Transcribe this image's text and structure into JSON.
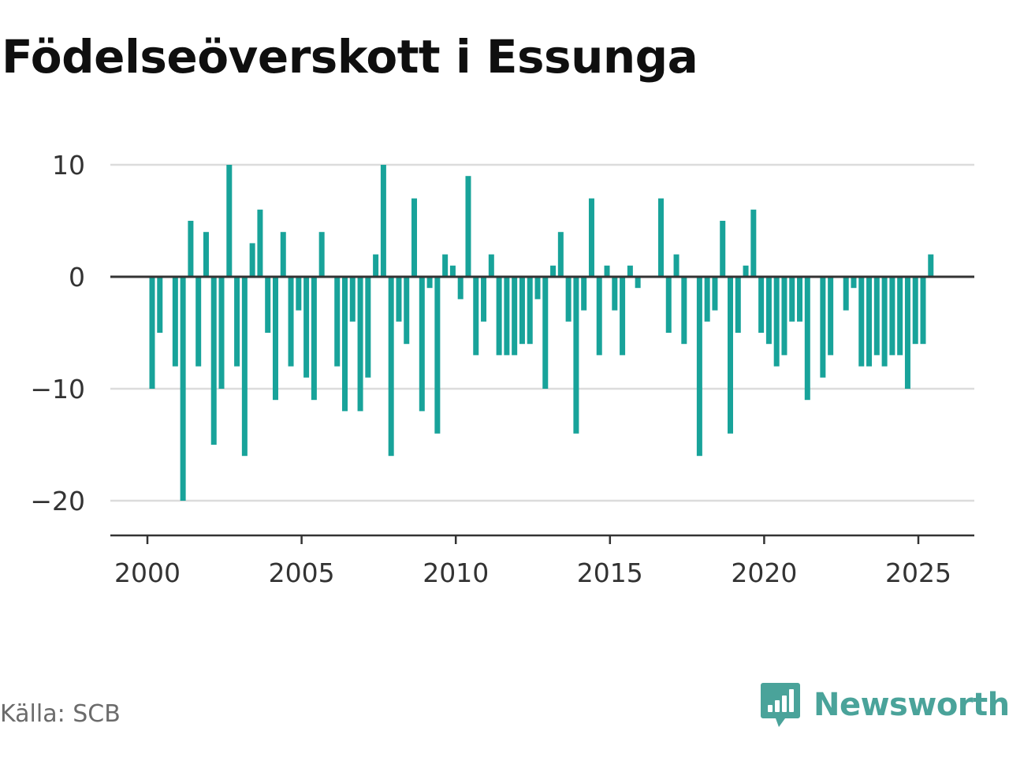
{
  "colors": {
    "bar": "#18a39a",
    "grid": "#dcdcdc",
    "axis": "#333333",
    "brand": "#4aa39a"
  },
  "source": "Källa: SCB",
  "brand": {
    "name": "Newsworthy",
    "logo_icon": "newsworthy-chart-bubble-icon"
  },
  "chart_data": {
    "type": "bar",
    "title": "Födelseöverskott i Essunga",
    "xlabel": "",
    "ylabel": "",
    "grid": true,
    "ylim": [
      -23,
      10
    ],
    "xlim": [
      1998.8,
      2026.8
    ],
    "yticks": [
      10,
      0,
      -10,
      -20
    ],
    "ytick_labels": [
      "10",
      "0",
      "−10",
      "−20"
    ],
    "xticks": [
      2000,
      2005,
      2010,
      2015,
      2020,
      2025
    ],
    "xtick_labels": [
      "2000",
      "2005",
      "2010",
      "2015",
      "2020",
      "2025"
    ],
    "frequency": "quarterly",
    "start_period": "2000 Q1",
    "values": [
      -10,
      -5,
      0,
      -8,
      -20,
      5,
      -8,
      4,
      -15,
      -10,
      10,
      -8,
      -16,
      3,
      6,
      -5,
      -11,
      4,
      -8,
      -3,
      -9,
      -11,
      4,
      0,
      -8,
      -12,
      -4,
      -12,
      -9,
      2,
      10,
      -16,
      -4,
      -6,
      7,
      -12,
      -1,
      -14,
      2,
      1,
      -2,
      9,
      -7,
      -4,
      2,
      -7,
      -7,
      -7,
      -6,
      -6,
      -2,
      -10,
      1,
      4,
      -4,
      -14,
      -3,
      7,
      -7,
      1,
      -3,
      -7,
      1,
      -1,
      0,
      0,
      7,
      -5,
      2,
      -6,
      0,
      -16,
      -4,
      -3,
      5,
      -14,
      -5,
      1,
      6,
      -5,
      -6,
      -8,
      -7,
      -4,
      -4,
      -11,
      0,
      -9,
      -7,
      0,
      -3,
      -1,
      -8,
      -8,
      -7,
      -8,
      -7,
      -7,
      -10,
      -6,
      -6,
      2
    ]
  }
}
